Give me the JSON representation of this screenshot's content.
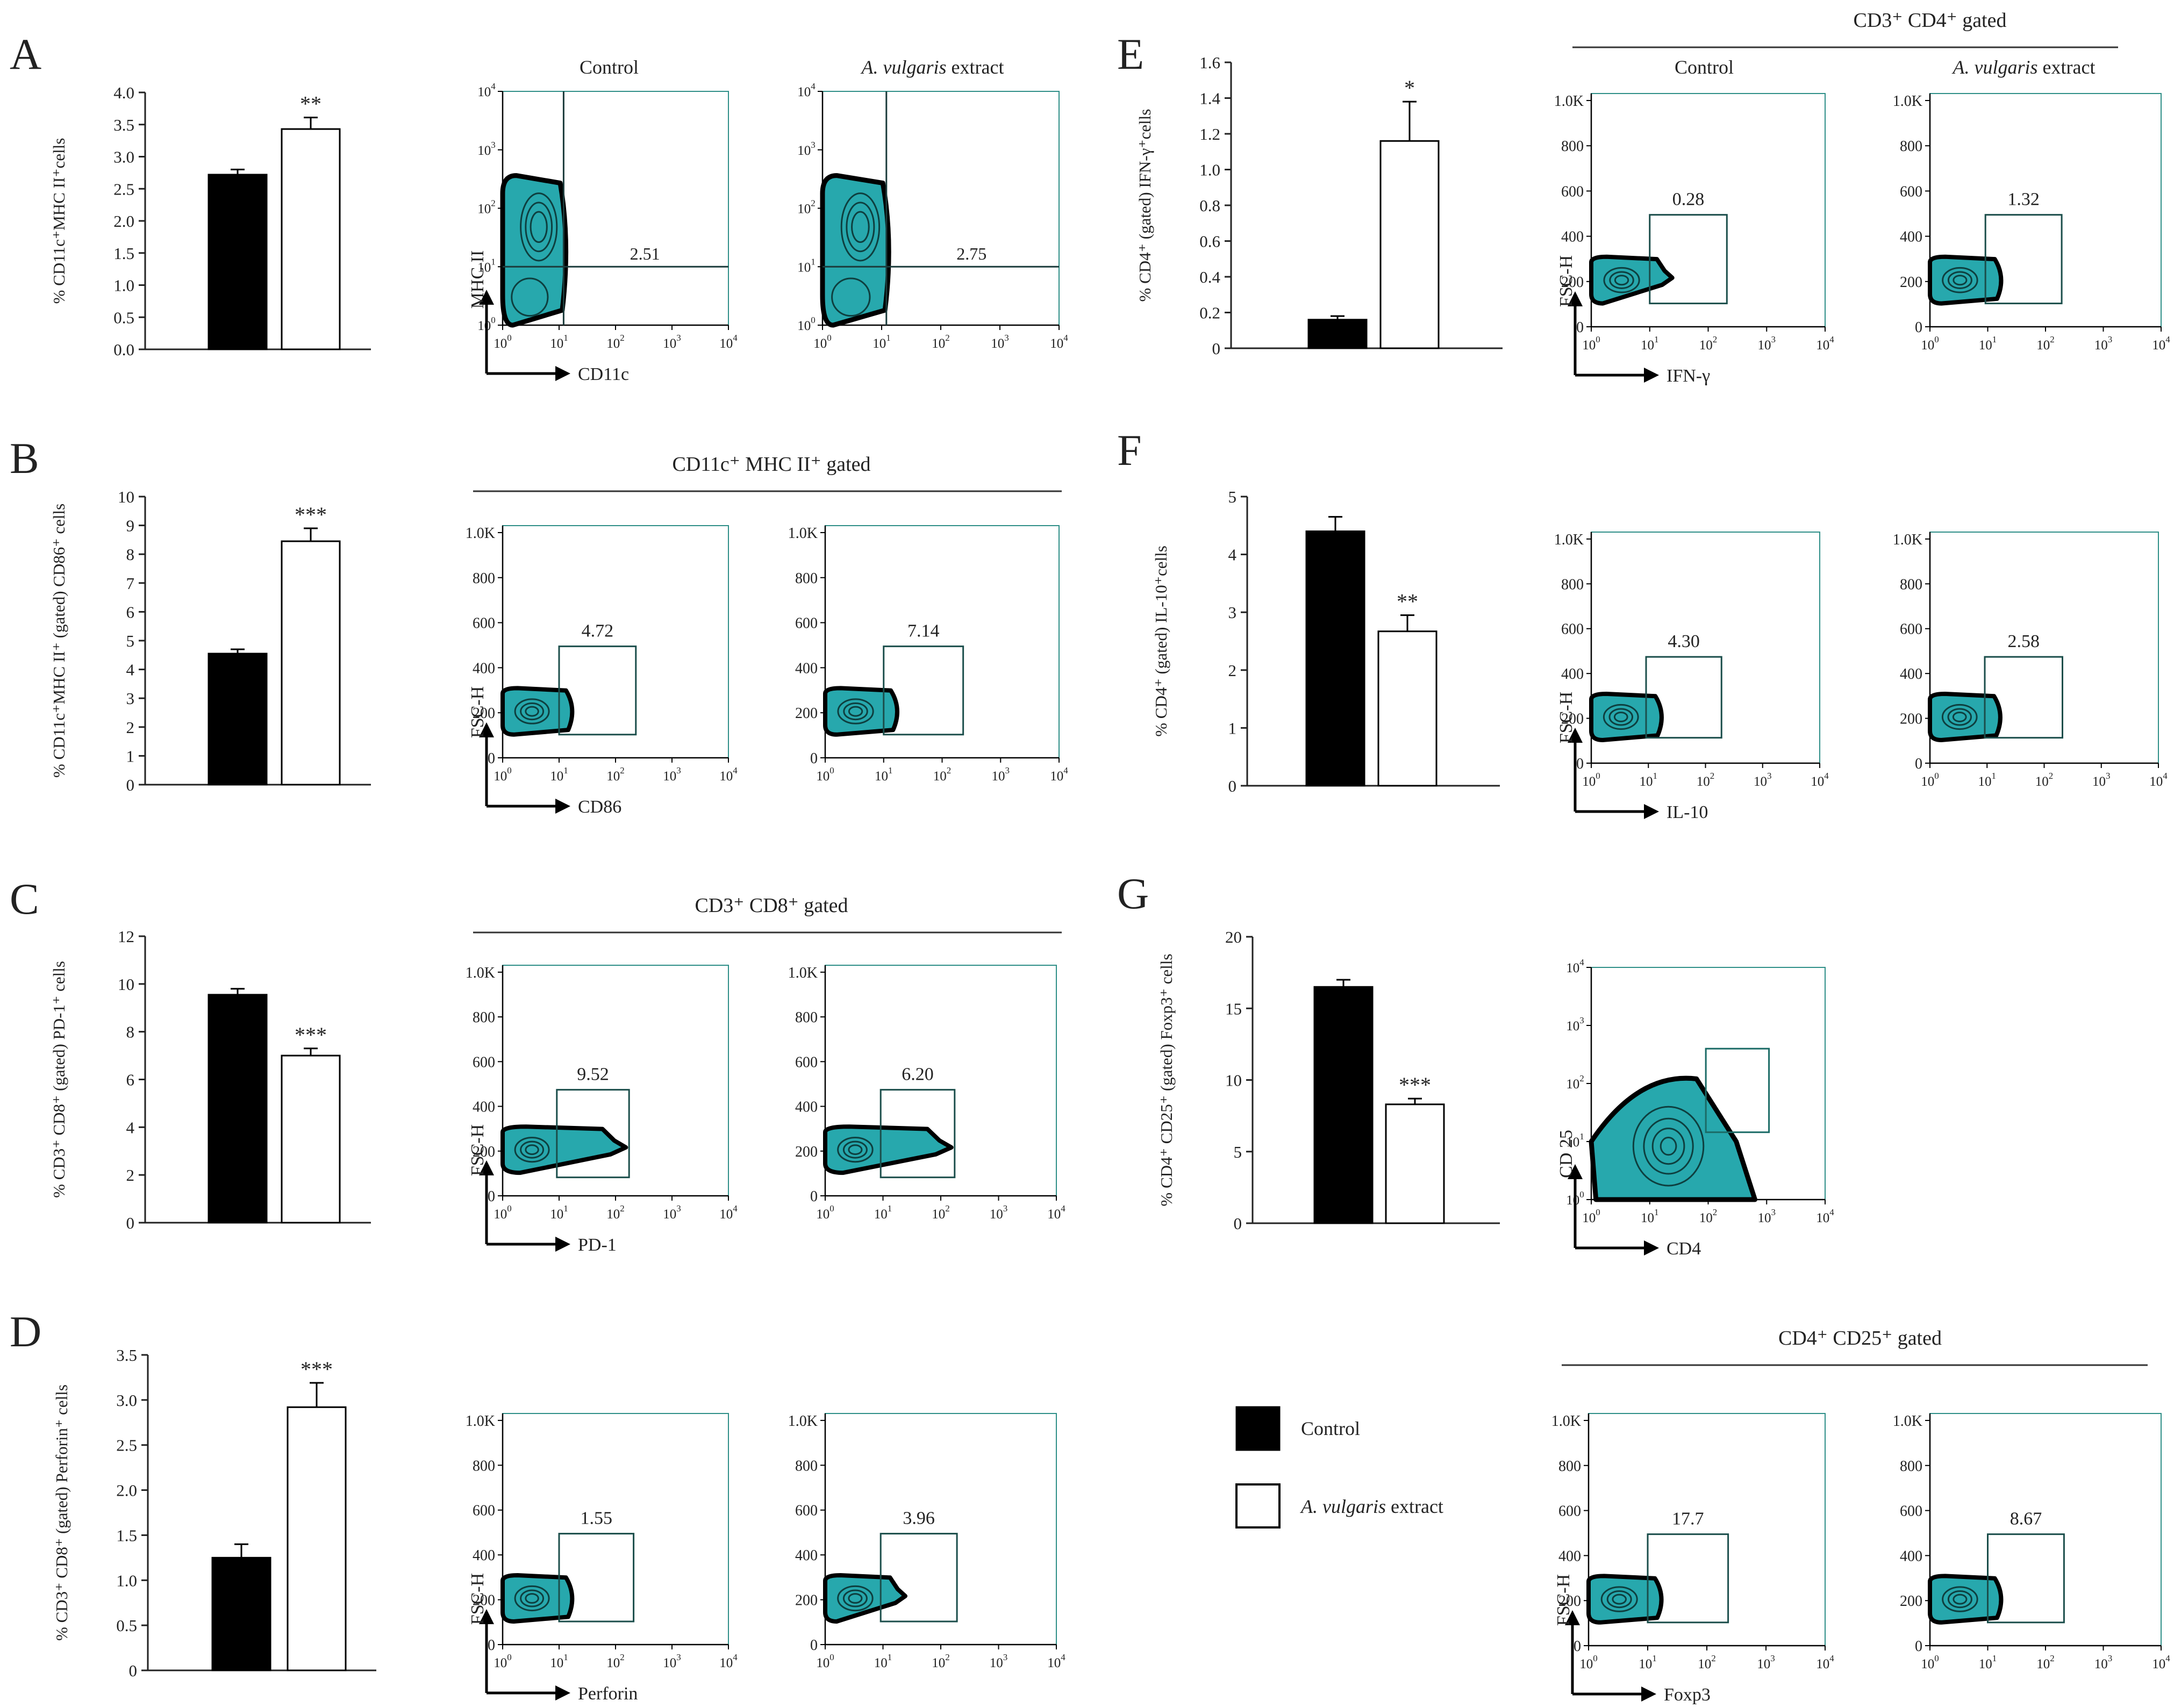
{
  "colors": {
    "control_bar": "#000000",
    "extract_bar": "#ffffff",
    "axis": "#222222",
    "plot_border": "#2f8f88",
    "density_fill": "#27a8ad",
    "density_edge": "#000000"
  },
  "legend": {
    "control": "Control",
    "extract_italic": "A. vulgaris",
    "extract_rest": " extract"
  },
  "chart_data": [
    {
      "panel": "A",
      "type": "bar",
      "ylabel": "% CD11c⁺MHC II⁺cells",
      "ylim": [
        0,
        4
      ],
      "yticks": [
        "0.0",
        "0.5",
        "1.0",
        "1.5",
        "2.0",
        "2.5",
        "3.0",
        "3.5",
        "4.0"
      ],
      "categories": [
        "Control",
        "A. vulgaris extract"
      ],
      "values": [
        2.72,
        3.43
      ],
      "errors": [
        0.08,
        0.18
      ],
      "significance": "**"
    },
    {
      "panel": "B",
      "type": "bar",
      "ylabel": "% CD11c⁺MHC II⁺ (gated) CD86⁺ cells",
      "ylim": [
        0,
        10
      ],
      "yticks": [
        "0",
        "1",
        "2",
        "3",
        "4",
        "5",
        "6",
        "7",
        "8",
        "9",
        "10"
      ],
      "categories": [
        "Control",
        "A. vulgaris extract"
      ],
      "values": [
        4.55,
        8.45
      ],
      "errors": [
        0.15,
        0.45
      ],
      "significance": "***"
    },
    {
      "panel": "C",
      "type": "bar",
      "ylabel": "% CD3⁺ CD8⁺ (gated) PD-1⁺ cells",
      "ylim": [
        0,
        12
      ],
      "yticks": [
        "0",
        "2",
        "4",
        "6",
        "8",
        "10",
        "12"
      ],
      "categories": [
        "Control",
        "A. vulgaris extract"
      ],
      "values": [
        9.55,
        7.0
      ],
      "errors": [
        0.25,
        0.3
      ],
      "significance": "***"
    },
    {
      "panel": "D",
      "type": "bar",
      "ylabel": "% CD3⁺ CD8⁺ (gated) Perforin⁺ cells",
      "ylim": [
        0,
        3.5
      ],
      "yticks": [
        "0",
        "0.5",
        "1.0",
        "1.5",
        "2.0",
        "2.5",
        "3.0",
        "3.5"
      ],
      "categories": [
        "Control",
        "A. vulgaris extract"
      ],
      "values": [
        1.25,
        2.92
      ],
      "errors": [
        0.15,
        0.27
      ],
      "significance": "***"
    },
    {
      "panel": "E",
      "type": "bar",
      "ylabel": "% CD4⁺ (gated) IFN-γ⁺cells",
      "ylim": [
        0,
        1.6
      ],
      "yticks": [
        "0",
        "0.2",
        "0.4",
        "0.6",
        "0.8",
        "1.0",
        "1.2",
        "1.4",
        "1.6"
      ],
      "categories": [
        "Control",
        "A. vulgaris extract"
      ],
      "values": [
        0.16,
        1.16
      ],
      "errors": [
        0.02,
        0.22
      ],
      "significance": "*"
    },
    {
      "panel": "F",
      "type": "bar",
      "ylabel": "% CD4⁺ (gated) IL-10⁺cells",
      "ylim": [
        0,
        5
      ],
      "yticks": [
        "0",
        "1",
        "2",
        "3",
        "4",
        "5"
      ],
      "categories": [
        "Control",
        "A. vulgaris extract"
      ],
      "values": [
        4.4,
        2.67
      ],
      "errors": [
        0.25,
        0.28
      ],
      "significance": "**"
    },
    {
      "panel": "G",
      "type": "bar",
      "ylabel": "% CD4⁺ CD25⁺ (gated) Foxp3⁺ cells",
      "ylim": [
        0,
        20
      ],
      "yticks": [
        "0",
        "5",
        "10",
        "15",
        "20"
      ],
      "categories": [
        "Control",
        "A. vulgaris extract"
      ],
      "values": [
        16.5,
        8.3
      ],
      "errors": [
        0.5,
        0.4
      ],
      "significance": "***"
    }
  ],
  "panel_letters": [
    "A",
    "B",
    "C",
    "D",
    "E",
    "F",
    "G"
  ],
  "column_titles": {
    "control": "Control",
    "extract_italic": "A. vulgaris",
    "extract_rest": " extract"
  },
  "gate_headers": {
    "B": "CD11c⁺  MHC II⁺  gated",
    "C": "CD3⁺  CD8⁺  gated",
    "E": "CD3⁺  CD4⁺  gated",
    "D_G": "CD4⁺  CD25⁺  gated"
  },
  "flow_plots": [
    {
      "id": "A1",
      "ytype": "log",
      "xlabel": "CD11c",
      "ylabel": "MHC II",
      "value": "2.51"
    },
    {
      "id": "A2",
      "ytype": "log",
      "value": "2.75"
    },
    {
      "id": "B1",
      "ytype": "linear",
      "xlabel": "CD86",
      "ylabel": "FSC-H",
      "value": "4.72"
    },
    {
      "id": "B2",
      "ytype": "linear",
      "value": "7.14"
    },
    {
      "id": "C1",
      "ytype": "linear",
      "xlabel": "PD-1",
      "ylabel": "FSC-H",
      "value": "9.52"
    },
    {
      "id": "C2",
      "ytype": "linear",
      "value": "6.20"
    },
    {
      "id": "D1",
      "ytype": "linear",
      "xlabel": "Perforin",
      "ylabel": "FSC-H",
      "value": "1.55"
    },
    {
      "id": "D2",
      "ytype": "linear",
      "value": "3.96"
    },
    {
      "id": "E1",
      "ytype": "linear",
      "xlabel": "IFN-γ",
      "ylabel": "FSC-H",
      "value": "0.28"
    },
    {
      "id": "E2",
      "ytype": "linear",
      "value": "1.32"
    },
    {
      "id": "F1",
      "ytype": "linear",
      "xlabel": "IL-10",
      "ylabel": "FSC-H",
      "value": "4.30"
    },
    {
      "id": "F2",
      "ytype": "linear",
      "value": "2.58"
    },
    {
      "id": "G0",
      "ytype": "log",
      "xlabel": "CD4",
      "ylabel": "CD 25"
    },
    {
      "id": "G1",
      "ytype": "linear",
      "xlabel": "Foxp3",
      "ylabel": "FSC-H",
      "value": "17.7"
    },
    {
      "id": "G2",
      "ytype": "linear",
      "value": "8.67"
    }
  ],
  "flow_ticks": {
    "linear": [
      "0",
      "200",
      "400",
      "600",
      "800",
      "1.0K"
    ],
    "log_base": "10",
    "log_exponents": [
      "0",
      "1",
      "2",
      "3",
      "4"
    ]
  }
}
